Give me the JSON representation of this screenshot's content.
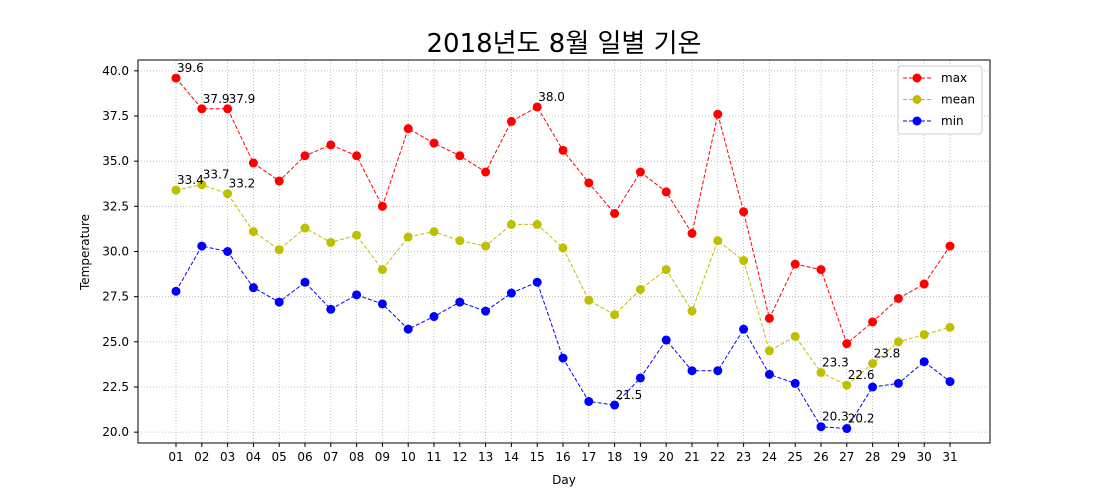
{
  "chart_data": {
    "type": "line",
    "title": "2018년도 8월 일별 기온",
    "xlabel": "Day",
    "ylabel": "Temperature",
    "categories": [
      "01",
      "02",
      "03",
      "04",
      "05",
      "06",
      "07",
      "08",
      "09",
      "10",
      "11",
      "12",
      "13",
      "14",
      "15",
      "16",
      "17",
      "18",
      "19",
      "20",
      "21",
      "22",
      "23",
      "24",
      "25",
      "26",
      "27",
      "28",
      "29",
      "30",
      "31"
    ],
    "ylim": [
      19.4,
      40.6
    ],
    "yticks": [
      "20.0",
      "22.5",
      "25.0",
      "27.5",
      "30.0",
      "32.5",
      "35.0",
      "37.5",
      "40.0"
    ],
    "grid": true,
    "legend_position": "top-right",
    "series": [
      {
        "name": "max",
        "color": "#ff0000",
        "values": [
          39.6,
          37.9,
          37.9,
          34.9,
          33.9,
          35.3,
          35.9,
          35.3,
          32.5,
          36.8,
          36.0,
          35.3,
          34.4,
          37.2,
          38.0,
          35.6,
          33.8,
          32.1,
          34.4,
          33.3,
          31.0,
          37.6,
          32.2,
          26.3,
          29.3,
          29.0,
          24.9,
          26.1,
          27.4,
          28.2,
          30.3
        ]
      },
      {
        "name": "mean",
        "color": "#bfbf00",
        "values": [
          33.4,
          33.7,
          33.2,
          31.1,
          30.1,
          31.3,
          30.5,
          30.9,
          29.0,
          30.8,
          31.1,
          30.6,
          30.3,
          31.5,
          31.5,
          30.2,
          27.3,
          26.5,
          27.9,
          29.0,
          26.7,
          30.6,
          29.5,
          24.5,
          25.3,
          23.3,
          22.6,
          23.8,
          25.0,
          25.4,
          25.8
        ]
      },
      {
        "name": "min",
        "color": "#0000ff",
        "values": [
          27.8,
          30.3,
          30.0,
          28.0,
          27.2,
          28.3,
          26.8,
          27.6,
          27.1,
          25.7,
          26.4,
          27.2,
          26.7,
          27.7,
          28.3,
          24.1,
          21.7,
          21.5,
          23.0,
          25.1,
          23.4,
          23.4,
          25.7,
          23.2,
          22.7,
          20.3,
          20.2,
          22.5,
          22.7,
          23.9,
          22.8
        ]
      }
    ],
    "annotations": [
      {
        "text": "39.6",
        "series": "max",
        "day": "01"
      },
      {
        "text": "37.9",
        "series": "max",
        "day": "02"
      },
      {
        "text": "37.9",
        "series": "max",
        "day": "03"
      },
      {
        "text": "38.0",
        "series": "max",
        "day": "15"
      },
      {
        "text": "33.4",
        "series": "mean",
        "day": "01"
      },
      {
        "text": "33.7",
        "series": "mean",
        "day": "02"
      },
      {
        "text": "33.2",
        "series": "mean",
        "day": "03"
      },
      {
        "text": "23.3",
        "series": "mean",
        "day": "26"
      },
      {
        "text": "22.6",
        "series": "mean",
        "day": "27"
      },
      {
        "text": "23.8",
        "series": "mean",
        "day": "28"
      },
      {
        "text": "21.5",
        "series": "min",
        "day": "18"
      },
      {
        "text": "20.3",
        "series": "min",
        "day": "26"
      },
      {
        "text": "20.2",
        "series": "min",
        "day": "27"
      }
    ]
  }
}
